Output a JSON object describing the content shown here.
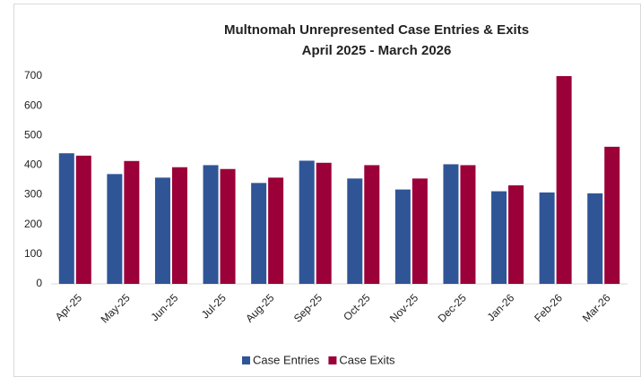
{
  "chart_data": {
    "type": "bar",
    "title": "Multnomah Unrepresented Case Entries & Exits",
    "subtitle": "April 2025 - March 2026",
    "categories": [
      "Apr-25",
      "May-25",
      "Jun-25",
      "Jul-25",
      "Aug-25",
      "Sep-25",
      "Oct-25",
      "Nov-25",
      "Dec-25",
      "Jan-26",
      "Feb-26",
      "Mar-26"
    ],
    "series": [
      {
        "name": "Case Entries",
        "color": "#2f5597",
        "values": [
          440,
          370,
          358,
          400,
          340,
          415,
          355,
          318,
          403,
          312,
          308,
          305
        ]
      },
      {
        "name": "Case Exits",
        "color": "#9b0039",
        "values": [
          432,
          414,
          393,
          387,
          358,
          408,
          400,
          355,
          400,
          332,
          700,
          462
        ]
      }
    ],
    "ylim": [
      0,
      700
    ],
    "yticks": [
      0,
      100,
      200,
      300,
      400,
      500,
      600,
      700
    ],
    "grid": false,
    "legend": "bottom"
  }
}
